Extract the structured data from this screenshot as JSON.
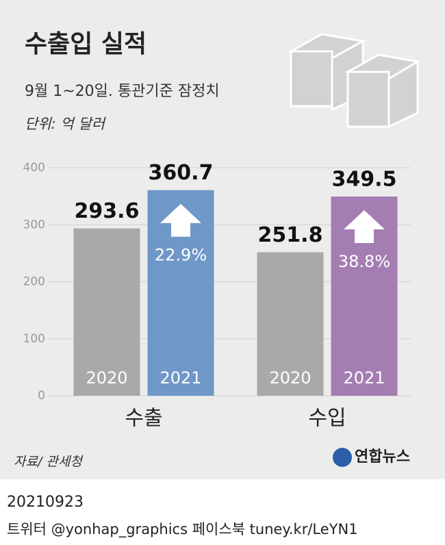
{
  "chart_data": {
    "type": "bar",
    "title": "수출입 실적",
    "subtitle": "9월 1~20일. 통관기준 잠정치",
    "unit": "단위: 억 달러",
    "categories": [
      "수출",
      "수입"
    ],
    "series": [
      {
        "name": "2020",
        "color": "#a9a9a9",
        "values": [
          293.6,
          251.8
        ]
      },
      {
        "name": "2021",
        "colors": [
          "#6f97c8",
          "#a47db3"
        ],
        "values": [
          360.7,
          349.5
        ],
        "change_labels": [
          "22.9%",
          "38.8%"
        ]
      }
    ],
    "ylim": [
      0,
      400
    ],
    "yticks": [
      0,
      100,
      200,
      300,
      400
    ],
    "grid": true,
    "source": "자료/ 관세청",
    "logo": "연합뉴스",
    "date": "20210923",
    "footer": "트위터 @yonhap_graphics  페이스북 tuney.kr/LeYN1"
  }
}
